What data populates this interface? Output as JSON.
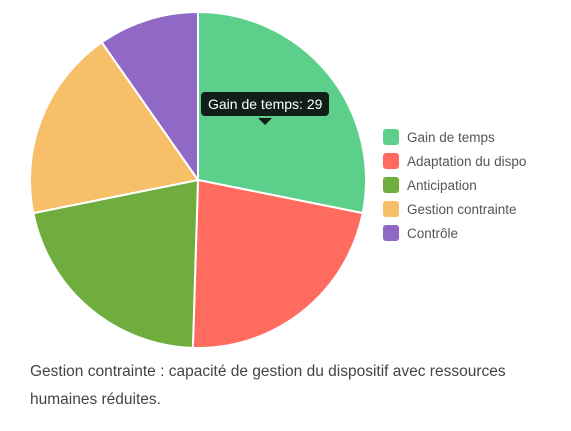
{
  "chart_data": {
    "type": "pie",
    "categories": [
      "Gain de temps",
      "Adaptation du dispo",
      "Anticipation",
      "Gestion contrainte",
      "Contrôle"
    ],
    "values": [
      29,
      23,
      22,
      19,
      10
    ],
    "colors": [
      "#5cd08a",
      "#ff6b5e",
      "#6fae3e",
      "#f6bf68",
      "#9069c6"
    ],
    "legend_position": "right",
    "tooltip": "Gain de temps: 29"
  },
  "caption": "Gestion contrainte : capacité de gestion du dispositif avec ressources humaines réduites."
}
